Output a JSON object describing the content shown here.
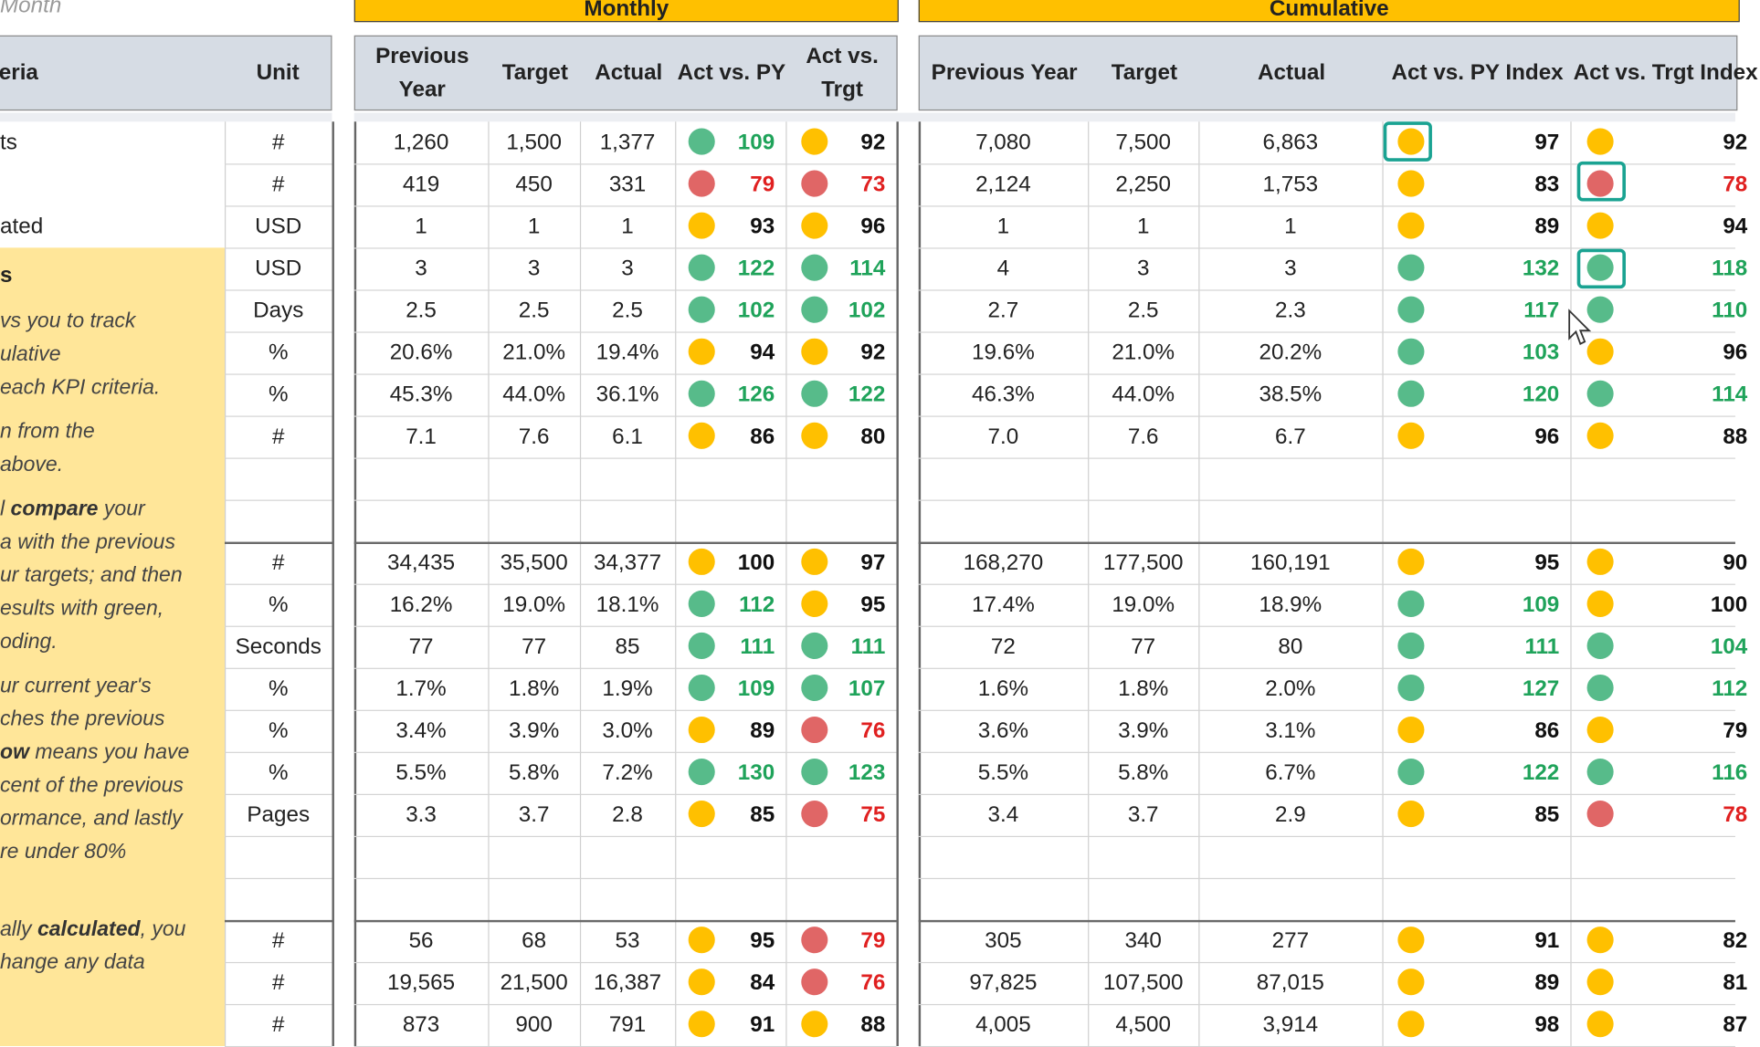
{
  "sheet": {
    "month_label": "Month",
    "banner_monthly": "Monthly",
    "banner_cumulative": "Cumulative",
    "headers": {
      "criteria": "eria",
      "unit": "Unit",
      "monthly": [
        "Previous Year",
        "Target",
        "Actual",
        "Act vs. PY",
        "Act vs. Trgt"
      ],
      "cumulative": [
        "Previous Year",
        "Target",
        "Actual",
        "Act vs. PY Index",
        "Act vs. Trgt Index"
      ]
    },
    "status_colors": {
      "green": "#57bb8a",
      "yellow": "#ffc000",
      "red": "#e06666"
    },
    "criteria_labels": [
      "ts",
      "",
      "ated",
      "s"
    ],
    "instructions": [
      {
        "parts": [
          [
            "vs you to track",
            false
          ]
        ]
      },
      {
        "parts": [
          [
            "ulative",
            false
          ]
        ]
      },
      {
        "parts": [
          [
            "each KPI criteria.",
            false
          ]
        ]
      },
      {
        "parts": [
          [
            "n from the",
            false
          ]
        ]
      },
      {
        "parts": [
          [
            "above.",
            false
          ]
        ]
      },
      {
        "parts": [
          [
            "l ",
            false
          ],
          [
            "compare",
            true
          ],
          [
            " your",
            false
          ]
        ]
      },
      {
        "parts": [
          [
            "a with the previous",
            false
          ]
        ]
      },
      {
        "parts": [
          [
            "ur targets; and then",
            false
          ]
        ]
      },
      {
        "parts": [
          [
            "esults with green,",
            false
          ]
        ]
      },
      {
        "parts": [
          [
            "oding.",
            false
          ]
        ]
      },
      {
        "parts": [
          [
            "ur current year's",
            false
          ]
        ]
      },
      {
        "parts": [
          [
            "ches the previous",
            false
          ]
        ]
      },
      {
        "parts": [
          [
            "ow",
            true
          ],
          [
            " means you have",
            false
          ]
        ]
      },
      {
        "parts": [
          [
            "cent of the previous",
            false
          ]
        ]
      },
      {
        "parts": [
          [
            "ormance, and lastly",
            false
          ]
        ]
      },
      {
        "parts": [
          [
            "re under 80%",
            false
          ]
        ]
      },
      {
        "parts": [
          [
            "ally ",
            false
          ],
          [
            "calculated",
            true
          ],
          [
            ", you",
            false
          ]
        ]
      },
      {
        "parts": [
          [
            "hange any data",
            false
          ]
        ]
      }
    ],
    "rows": [
      {
        "unit": "#",
        "m": [
          "1,260",
          "1,500",
          "1,377"
        ],
        "m_py": [
          "109",
          "g"
        ],
        "m_tg": [
          "92",
          "y"
        ],
        "c": [
          "7,080",
          "7,500",
          "6,863"
        ],
        "c_py": [
          "97",
          "y"
        ],
        "c_tg": [
          "92",
          "y"
        ]
      },
      {
        "unit": "#",
        "m": [
          "419",
          "450",
          "331"
        ],
        "m_py": [
          "79",
          "r"
        ],
        "m_tg": [
          "73",
          "r"
        ],
        "c": [
          "2,124",
          "2,250",
          "1,753"
        ],
        "c_py": [
          "83",
          "y"
        ],
        "c_tg": [
          "78",
          "r"
        ]
      },
      {
        "unit": "USD",
        "m": [
          "1",
          "1",
          "1"
        ],
        "m_py": [
          "93",
          "y"
        ],
        "m_tg": [
          "96",
          "y"
        ],
        "c": [
          "1",
          "1",
          "1"
        ],
        "c_py": [
          "89",
          "y"
        ],
        "c_tg": [
          "94",
          "y"
        ]
      },
      {
        "unit": "USD",
        "m": [
          "3",
          "3",
          "3"
        ],
        "m_py": [
          "122",
          "g"
        ],
        "m_tg": [
          "114",
          "g"
        ],
        "c": [
          "4",
          "3",
          "3"
        ],
        "c_py": [
          "132",
          "g"
        ],
        "c_tg": [
          "118",
          "g"
        ]
      },
      {
        "unit": "Days",
        "m": [
          "2.5",
          "2.5",
          "2.5"
        ],
        "m_py": [
          "102",
          "g"
        ],
        "m_tg": [
          "102",
          "g"
        ],
        "c": [
          "2.7",
          "2.5",
          "2.3"
        ],
        "c_py": [
          "117",
          "g"
        ],
        "c_tg": [
          "110",
          "g"
        ]
      },
      {
        "unit": "%",
        "m": [
          "20.6%",
          "21.0%",
          "19.4%"
        ],
        "m_py": [
          "94",
          "y"
        ],
        "m_tg": [
          "92",
          "y"
        ],
        "c": [
          "19.6%",
          "21.0%",
          "20.2%"
        ],
        "c_py": [
          "103",
          "g"
        ],
        "c_tg": [
          "96",
          "y"
        ]
      },
      {
        "unit": "%",
        "m": [
          "45.3%",
          "44.0%",
          "36.1%"
        ],
        "m_py": [
          "126",
          "g"
        ],
        "m_tg": [
          "122",
          "g"
        ],
        "c": [
          "46.3%",
          "44.0%",
          "38.5%"
        ],
        "c_py": [
          "120",
          "g"
        ],
        "c_tg": [
          "114",
          "g"
        ]
      },
      {
        "unit": "#",
        "m": [
          "7.1",
          "7.6",
          "6.1"
        ],
        "m_py": [
          "86",
          "y"
        ],
        "m_tg": [
          "80",
          "y"
        ],
        "c": [
          "7.0",
          "7.6",
          "6.7"
        ],
        "c_py": [
          "96",
          "y"
        ],
        "c_tg": [
          "88",
          "y"
        ]
      },
      null,
      null,
      {
        "unit": "#",
        "m": [
          "34,435",
          "35,500",
          "34,377"
        ],
        "m_py": [
          "100",
          "y"
        ],
        "m_tg": [
          "97",
          "y"
        ],
        "c": [
          "168,270",
          "177,500",
          "160,191"
        ],
        "c_py": [
          "95",
          "y"
        ],
        "c_tg": [
          "90",
          "y"
        ]
      },
      {
        "unit": "%",
        "m": [
          "16.2%",
          "19.0%",
          "18.1%"
        ],
        "m_py": [
          "112",
          "g"
        ],
        "m_tg": [
          "95",
          "y"
        ],
        "c": [
          "17.4%",
          "19.0%",
          "18.9%"
        ],
        "c_py": [
          "109",
          "g"
        ],
        "c_tg": [
          "100",
          "y"
        ]
      },
      {
        "unit": "Seconds",
        "m": [
          "77",
          "77",
          "85"
        ],
        "m_py": [
          "111",
          "g"
        ],
        "m_tg": [
          "111",
          "g"
        ],
        "c": [
          "72",
          "77",
          "80"
        ],
        "c_py": [
          "111",
          "g"
        ],
        "c_tg": [
          "104",
          "g"
        ]
      },
      {
        "unit": "%",
        "m": [
          "1.7%",
          "1.8%",
          "1.9%"
        ],
        "m_py": [
          "109",
          "g"
        ],
        "m_tg": [
          "107",
          "g"
        ],
        "c": [
          "1.6%",
          "1.8%",
          "2.0%"
        ],
        "c_py": [
          "127",
          "g"
        ],
        "c_tg": [
          "112",
          "g"
        ]
      },
      {
        "unit": "%",
        "m": [
          "3.4%",
          "3.9%",
          "3.0%"
        ],
        "m_py": [
          "89",
          "y"
        ],
        "m_tg": [
          "76",
          "r"
        ],
        "c": [
          "3.6%",
          "3.9%",
          "3.1%"
        ],
        "c_py": [
          "86",
          "y"
        ],
        "c_tg": [
          "79",
          "y"
        ]
      },
      {
        "unit": "%",
        "m": [
          "5.5%",
          "5.8%",
          "7.2%"
        ],
        "m_py": [
          "130",
          "g"
        ],
        "m_tg": [
          "123",
          "g"
        ],
        "c": [
          "5.5%",
          "5.8%",
          "6.7%"
        ],
        "c_py": [
          "122",
          "g"
        ],
        "c_tg": [
          "116",
          "g"
        ]
      },
      {
        "unit": "Pages",
        "m": [
          "3.3",
          "3.7",
          "2.8"
        ],
        "m_py": [
          "85",
          "y"
        ],
        "m_tg": [
          "75",
          "r"
        ],
        "c": [
          "3.4",
          "3.7",
          "2.9"
        ],
        "c_py": [
          "85",
          "y"
        ],
        "c_tg": [
          "78",
          "r"
        ]
      },
      null,
      null,
      {
        "unit": "#",
        "m": [
          "56",
          "68",
          "53"
        ],
        "m_py": [
          "95",
          "y"
        ],
        "m_tg": [
          "79",
          "r"
        ],
        "c": [
          "305",
          "340",
          "277"
        ],
        "c_py": [
          "91",
          "y"
        ],
        "c_tg": [
          "82",
          "y"
        ]
      },
      {
        "unit": "#",
        "m": [
          "19,565",
          "21,500",
          "16,387"
        ],
        "m_py": [
          "84",
          "y"
        ],
        "m_tg": [
          "76",
          "r"
        ],
        "c": [
          "97,825",
          "107,500",
          "87,015"
        ],
        "c_py": [
          "89",
          "y"
        ],
        "c_tg": [
          "81",
          "y"
        ]
      },
      {
        "unit": "#",
        "m": [
          "873",
          "900",
          "791"
        ],
        "m_py": [
          "91",
          "y"
        ],
        "m_tg": [
          "88",
          "y"
        ],
        "c": [
          "4,005",
          "4,500",
          "3,914"
        ],
        "c_py": [
          "98",
          "y"
        ],
        "c_tg": [
          "87",
          "y"
        ]
      }
    ]
  }
}
